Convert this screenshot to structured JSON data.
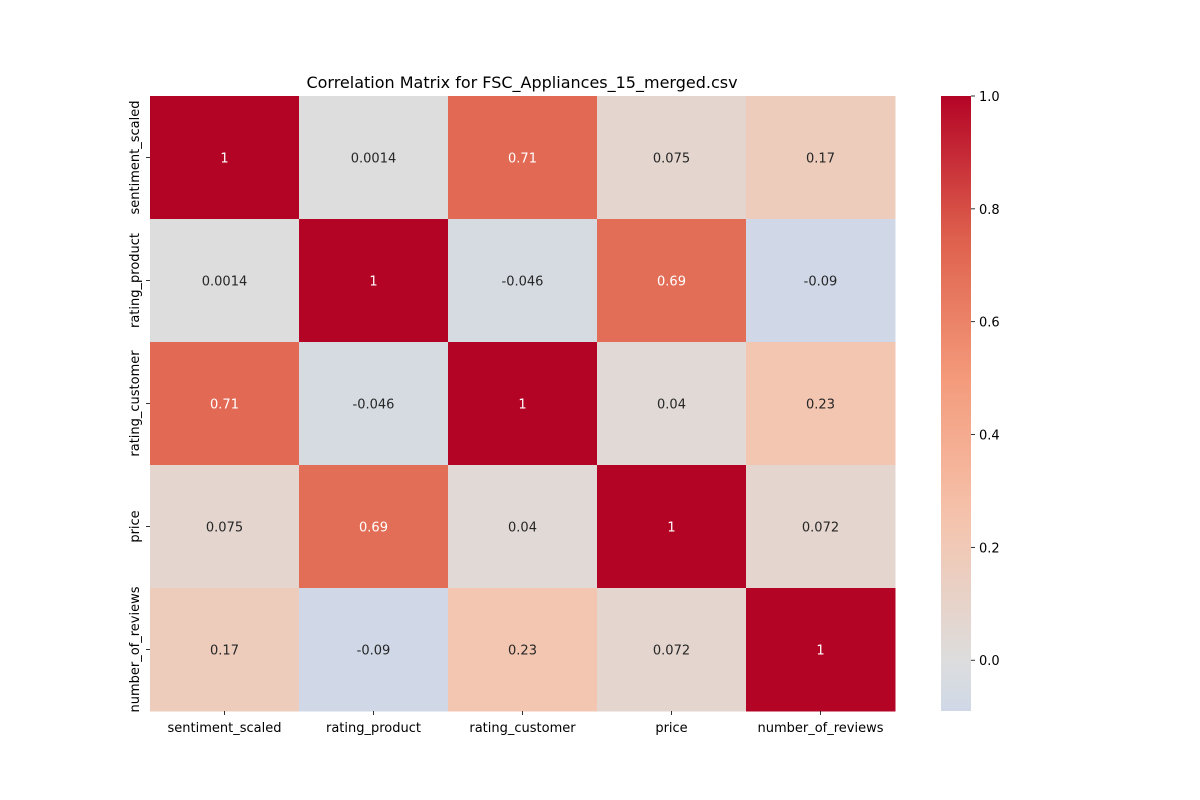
{
  "chart_data": {
    "type": "heatmap",
    "title": "Correlation Matrix for FSC_Appliances_15_merged.csv",
    "xlabel": "",
    "ylabel": "",
    "x_categories": [
      "sentiment_scaled",
      "rating_product",
      "rating_customer",
      "price",
      "number_of_reviews"
    ],
    "y_categories": [
      "sentiment_scaled",
      "rating_product",
      "rating_customer",
      "price",
      "number_of_reviews"
    ],
    "values": [
      [
        1,
        0.0014,
        0.71,
        0.075,
        0.17
      ],
      [
        0.0014,
        1,
        -0.046,
        0.69,
        -0.09
      ],
      [
        0.71,
        -0.046,
        1,
        0.04,
        0.23
      ],
      [
        0.075,
        0.69,
        0.04,
        1,
        0.072
      ],
      [
        0.17,
        -0.09,
        0.23,
        0.072,
        1
      ]
    ],
    "value_labels": [
      [
        "1",
        "0.0014",
        "0.71",
        "0.075",
        "0.17"
      ],
      [
        "0.0014",
        "1",
        "-0.046",
        "0.69",
        "-0.09"
      ],
      [
        "0.71",
        "-0.046",
        "1",
        "0.04",
        "0.23"
      ],
      [
        "0.075",
        "0.69",
        "0.04",
        "1",
        "0.072"
      ],
      [
        "0.17",
        "-0.09",
        "0.23",
        "0.072",
        "1"
      ]
    ],
    "colormap": "coolwarm",
    "colorbar": {
      "range": [
        -0.09,
        1.0
      ],
      "ticks": [
        0.0,
        0.2,
        0.4,
        0.6,
        0.8,
        1.0
      ],
      "tick_labels": [
        "0.0",
        "0.2",
        "0.4",
        "0.6",
        "0.8",
        "1.0"
      ]
    },
    "grid": false,
    "legend": "colorbar-right"
  }
}
